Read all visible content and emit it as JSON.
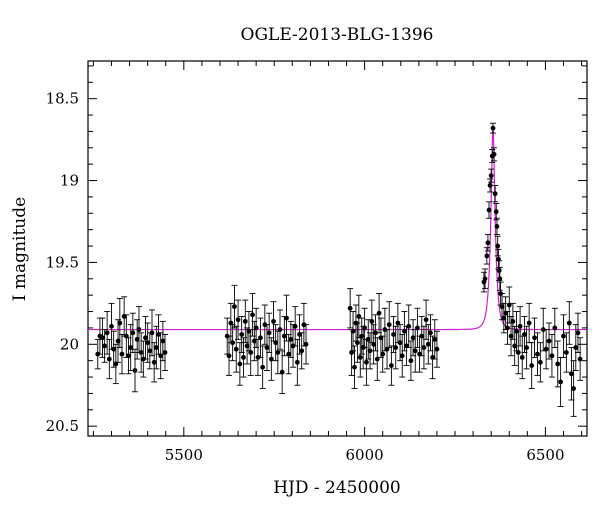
{
  "chart_data": {
    "type": "scatter",
    "title": "OGLE-2013-BLG-1396",
    "xlabel": "HJD - 2450000",
    "ylabel": "I magnitude",
    "xlim": [
      5235,
      6615
    ],
    "ylim": [
      20.56,
      18.27
    ],
    "y_inverted": true,
    "xticks": [
      5500,
      6000,
      6500
    ],
    "xtick_labels": [
      "5500",
      "6000",
      "6500"
    ],
    "yticks": [
      18.5,
      19,
      19.5,
      20,
      20.5
    ],
    "ytick_labels": [
      "18.5",
      "19",
      "19.5",
      "20",
      "20.5"
    ],
    "grid": false,
    "legend": "none",
    "colors": {
      "points": "#000000",
      "model": "#d21fd2"
    },
    "model": {
      "type": "paczynski",
      "baseline": 19.91,
      "peak": 18.68,
      "t0": 6355,
      "tE": 12
    },
    "series": [
      {
        "points": [
          [
            5262,
            20.06,
            0.09
          ],
          [
            5268,
            19.95,
            0.11
          ],
          [
            5275,
            19.96,
            0.12
          ],
          [
            5281,
            20.01,
            0.1
          ],
          [
            5288,
            19.93,
            0.13
          ],
          [
            5294,
            20.09,
            0.12
          ],
          [
            5300,
            19.89,
            0.14
          ],
          [
            5306,
            20.03,
            0.11
          ],
          [
            5312,
            20.12,
            0.12
          ],
          [
            5318,
            19.98,
            0.13
          ],
          [
            5323,
            19.87,
            0.15
          ],
          [
            5329,
            20.06,
            0.12
          ],
          [
            5335,
            19.83,
            0.12
          ],
          [
            5341,
            19.95,
            0.13
          ],
          [
            5347,
            20.07,
            0.11
          ],
          [
            5353,
            20.02,
            0.14
          ],
          [
            5359,
            19.93,
            0.12
          ],
          [
            5365,
            20.16,
            0.13
          ],
          [
            5371,
            19.97,
            0.12
          ],
          [
            5376,
            19.91,
            0.14
          ],
          [
            5382,
            20.05,
            0.12
          ],
          [
            5388,
            20.09,
            0.11
          ],
          [
            5394,
            19.96,
            0.13
          ],
          [
            5400,
            19.99,
            0.12
          ],
          [
            5406,
            20.04,
            0.11
          ],
          [
            5412,
            19.93,
            0.14
          ],
          [
            5418,
            20.11,
            0.12
          ],
          [
            5424,
            20.02,
            0.13
          ],
          [
            5430,
            19.94,
            0.12
          ],
          [
            5436,
            20.07,
            0.14
          ],
          [
            5442,
            19.98,
            0.12
          ],
          [
            5448,
            20.05,
            0.11
          ],
          [
            5620,
            19.95,
            0.11
          ],
          [
            5625,
            20.07,
            0.12
          ],
          [
            5630,
            19.87,
            0.12
          ],
          [
            5635,
            19.99,
            0.11
          ],
          [
            5640,
            19.77,
            0.13
          ],
          [
            5645,
            20.03,
            0.14
          ],
          [
            5650,
            19.85,
            0.12
          ],
          [
            5655,
            20.12,
            0.13
          ],
          [
            5660,
            19.94,
            0.11
          ],
          [
            5665,
            20.08,
            0.12
          ],
          [
            5670,
            19.86,
            0.13
          ],
          [
            5675,
            20.01,
            0.11
          ],
          [
            5680,
            19.92,
            0.12
          ],
          [
            5685,
            20.05,
            0.14
          ],
          [
            5690,
            19.82,
            0.13
          ],
          [
            5695,
            19.98,
            0.12
          ],
          [
            5700,
            19.9,
            0.12
          ],
          [
            5705,
            20.08,
            0.11
          ],
          [
            5712,
            19.96,
            0.12
          ],
          [
            5718,
            20.14,
            0.13
          ],
          [
            5724,
            19.88,
            0.12
          ],
          [
            5730,
            20.02,
            0.14
          ],
          [
            5736,
            19.93,
            0.12
          ],
          [
            5742,
            20.09,
            0.13
          ],
          [
            5748,
            19.86,
            0.12
          ],
          [
            5754,
            19.99,
            0.11
          ],
          [
            5760,
            20.05,
            0.13
          ],
          [
            5766,
            19.91,
            0.12
          ],
          [
            5772,
            20.17,
            0.13
          ],
          [
            5778,
            19.95,
            0.12
          ],
          [
            5784,
            19.84,
            0.14
          ],
          [
            5790,
            20.06,
            0.12
          ],
          [
            5796,
            19.97,
            0.11
          ],
          [
            5802,
            20.01,
            0.13
          ],
          [
            5808,
            19.89,
            0.12
          ],
          [
            5814,
            20.11,
            0.14
          ],
          [
            5820,
            19.94,
            0.12
          ],
          [
            5826,
            20.04,
            0.11
          ],
          [
            5832,
            19.88,
            0.13
          ],
          [
            5838,
            20.0,
            0.12
          ],
          [
            5960,
            19.78,
            0.12
          ],
          [
            5964,
            20.05,
            0.14
          ],
          [
            5968,
            19.92,
            0.12
          ],
          [
            5972,
            20.14,
            0.13
          ],
          [
            5976,
            19.87,
            0.11
          ],
          [
            5980,
            19.99,
            0.12
          ],
          [
            5984,
            19.83,
            0.13
          ],
          [
            5988,
            20.08,
            0.12
          ],
          [
            5992,
            19.95,
            0.11
          ],
          [
            5996,
            20.02,
            0.13
          ],
          [
            6000,
            19.9,
            0.12
          ],
          [
            6005,
            20.11,
            0.14
          ],
          [
            6010,
            19.97,
            0.12
          ],
          [
            6015,
            20.04,
            0.11
          ],
          [
            6020,
            19.86,
            0.13
          ],
          [
            6025,
            20.0,
            0.12
          ],
          [
            6030,
            19.93,
            0.11
          ],
          [
            6035,
            20.09,
            0.13
          ],
          [
            6040,
            19.81,
            0.12
          ],
          [
            6045,
            19.96,
            0.12
          ],
          [
            6050,
            20.06,
            0.11
          ],
          [
            6056,
            19.91,
            0.13
          ],
          [
            6062,
            20.03,
            0.12
          ],
          [
            6068,
            19.88,
            0.14
          ],
          [
            6074,
            20.13,
            0.12
          ],
          [
            6080,
            19.94,
            0.11
          ],
          [
            6086,
            20.02,
            0.13
          ],
          [
            6092,
            19.87,
            0.12
          ],
          [
            6098,
            19.99,
            0.11
          ],
          [
            6104,
            20.07,
            0.13
          ],
          [
            6110,
            19.92,
            0.12
          ],
          [
            6116,
            20.01,
            0.12
          ],
          [
            6122,
            19.89,
            0.13
          ],
          [
            6128,
            20.1,
            0.12
          ],
          [
            6134,
            19.96,
            0.11
          ],
          [
            6140,
            20.04,
            0.13
          ],
          [
            6146,
            19.9,
            0.12
          ],
          [
            6152,
            20.06,
            0.11
          ],
          [
            6158,
            19.95,
            0.12
          ],
          [
            6164,
            20.02,
            0.13
          ],
          [
            6170,
            19.85,
            0.12
          ],
          [
            6176,
            20.0,
            0.12
          ],
          [
            6182,
            19.93,
            0.11
          ],
          [
            6188,
            20.08,
            0.13
          ],
          [
            6194,
            19.97,
            0.12
          ],
          [
            6200,
            20.03,
            0.11
          ],
          [
            6330,
            19.62,
            0.06
          ],
          [
            6333,
            19.6,
            0.06
          ],
          [
            6338,
            19.46,
            0.05
          ],
          [
            6341,
            19.38,
            0.05
          ],
          [
            6344,
            19.18,
            0.05
          ],
          [
            6347,
            19.03,
            0.04
          ],
          [
            6350,
            18.97,
            0.04
          ],
          [
            6353,
            18.85,
            0.04
          ],
          [
            6355,
            18.68,
            0.03
          ],
          [
            6358,
            18.84,
            0.04
          ],
          [
            6361,
            19.08,
            0.05
          ],
          [
            6364,
            19.19,
            0.05
          ],
          [
            6366,
            19.28,
            0.05
          ],
          [
            6368,
            19.4,
            0.06
          ],
          [
            6370,
            19.48,
            0.06
          ],
          [
            6372,
            19.55,
            0.06
          ],
          [
            6374,
            19.6,
            0.07
          ],
          [
            6376,
            19.69,
            0.07
          ],
          [
            6380,
            19.77,
            0.08
          ],
          [
            6385,
            19.84,
            0.09
          ],
          [
            6390,
            19.81,
            0.1
          ],
          [
            6395,
            19.9,
            0.1
          ],
          [
            6400,
            19.76,
            0.11
          ],
          [
            6405,
            19.95,
            0.12
          ],
          [
            6410,
            19.86,
            0.11
          ],
          [
            6415,
            20.01,
            0.12
          ],
          [
            6420,
            19.92,
            0.12
          ],
          [
            6425,
            20.05,
            0.13
          ],
          [
            6430,
            19.89,
            0.12
          ],
          [
            6436,
            20.08,
            0.13
          ],
          [
            6442,
            19.94,
            0.11
          ],
          [
            6448,
            20.02,
            0.13
          ],
          [
            6455,
            19.87,
            0.12
          ],
          [
            6462,
            20.13,
            0.14
          ],
          [
            6470,
            19.96,
            0.12
          ],
          [
            6478,
            20.06,
            0.13
          ],
          [
            6486,
            20.11,
            0.12
          ],
          [
            6494,
            19.91,
            0.13
          ],
          [
            6502,
            20.03,
            0.12
          ],
          [
            6510,
            19.98,
            0.11
          ],
          [
            6518,
            20.07,
            0.13
          ],
          [
            6526,
            19.9,
            0.12
          ],
          [
            6534,
            20.12,
            0.14
          ],
          [
            6542,
            20.23,
            0.15
          ],
          [
            6550,
            19.95,
            0.13
          ],
          [
            6558,
            20.05,
            0.12
          ],
          [
            6566,
            19.87,
            0.13
          ],
          [
            6572,
            20.18,
            0.16
          ],
          [
            6578,
            20.27,
            0.17
          ],
          [
            6584,
            20.02,
            0.14
          ],
          [
            6590,
            19.93,
            0.12
          ],
          [
            6596,
            20.09,
            0.13
          ]
        ]
      }
    ]
  }
}
